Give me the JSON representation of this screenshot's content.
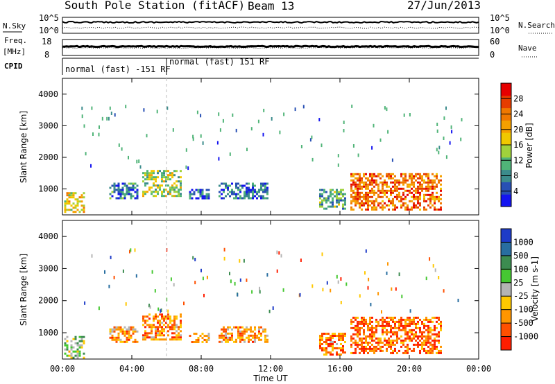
{
  "header": {
    "station": "South Pole Station (fitACF)",
    "beam": "Beam 13",
    "date": "27/Jun/2013"
  },
  "strips": {
    "nsky_label": "N.Sky",
    "nsky_ticks": [
      "10^5",
      "10^0"
    ],
    "nsearch_label": "N.Search",
    "nsearch_ticks": [
      "10^5",
      "10^0"
    ],
    "freq_label_1": "Freq.",
    "freq_label_2": "[MHz]",
    "freq_ticks": [
      "18",
      "8"
    ],
    "nave_label": "Nave",
    "nave_ticks": [
      "60",
      "0"
    ],
    "cpid_label": "CPID",
    "cpid_segments": [
      {
        "label": "normal (fast) -151 RF",
        "start_hour": 0,
        "end_hour": 6
      },
      {
        "label": "normal (fast) 151 RF",
        "start_hour": 6,
        "end_hour": 24
      }
    ]
  },
  "x_axis": {
    "label": "Time UT",
    "ticks": [
      "00:00",
      "04:00",
      "08:00",
      "12:00",
      "16:00",
      "20:00",
      "00:00"
    ],
    "range_hours": [
      0,
      24
    ]
  },
  "chart_data": [
    {
      "type": "heatmap",
      "name": "power",
      "ylabel": "Slant Range [km]",
      "yticks": [
        "1000",
        "2000",
        "3000",
        "4000"
      ],
      "ylim": [
        180,
        4500
      ],
      "colorbar_label": "Power [dB]",
      "colorbar_ticks": [
        "4",
        "8",
        "12",
        "16",
        "20",
        "24",
        "28"
      ],
      "colorbar_colors": [
        "#1414f0",
        "#2850b4",
        "#3c8c8c",
        "#50b478",
        "#a0d23c",
        "#f0c800",
        "#f5a000",
        "#f07800",
        "#e63c00",
        "#e60000"
      ],
      "echo_regions": [
        {
          "t0": 0.1,
          "t1": 1.2,
          "r0": 250,
          "r1": 900,
          "level": 0.55
        },
        {
          "t0": 2.7,
          "t1": 4.3,
          "r0": 700,
          "r1": 1200,
          "level": 0.2
        },
        {
          "t0": 4.6,
          "t1": 6.8,
          "r0": 800,
          "r1": 1600,
          "level": 0.45
        },
        {
          "t0": 7.3,
          "t1": 8.5,
          "r0": 700,
          "r1": 1000,
          "level": 0.15
        },
        {
          "t0": 9.0,
          "t1": 11.8,
          "r0": 700,
          "r1": 1200,
          "level": 0.15
        },
        {
          "t0": 14.8,
          "t1": 16.3,
          "r0": 350,
          "r1": 1000,
          "level": 0.3
        },
        {
          "t0": 16.6,
          "t1": 21.8,
          "r0": 350,
          "r1": 1500,
          "level": 0.8
        }
      ]
    },
    {
      "type": "heatmap",
      "name": "velocity",
      "ylabel": "Slant Range [km]",
      "yticks": [
        "1000",
        "2000",
        "3000",
        "4000"
      ],
      "ylim": [
        180,
        4500
      ],
      "colorbar_label": "Velocity [m s-1]",
      "colorbar_ticks": [
        "1000",
        "500",
        "100",
        "25",
        "-25",
        "-100",
        "-500",
        "-1000"
      ],
      "colorbar_colors": [
        "#1e3cc8",
        "#286ea0",
        "#3c8c50",
        "#46c832",
        "#b4b4b4",
        "#ffc800",
        "#ff9600",
        "#ff5000",
        "#ff1e00"
      ],
      "echo_regions": [
        {
          "t0": 0.1,
          "t1": 1.2,
          "r0": 250,
          "r1": 900,
          "level": 0.45
        },
        {
          "t0": 2.7,
          "t1": 4.3,
          "r0": 700,
          "r1": 1200,
          "level": 0.7
        },
        {
          "t0": 4.6,
          "t1": 6.8,
          "r0": 800,
          "r1": 1600,
          "level": 0.75
        },
        {
          "t0": 7.3,
          "t1": 8.5,
          "r0": 700,
          "r1": 1000,
          "level": 0.75
        },
        {
          "t0": 9.0,
          "t1": 11.8,
          "r0": 700,
          "r1": 1200,
          "level": 0.75
        },
        {
          "t0": 14.8,
          "t1": 16.3,
          "r0": 350,
          "r1": 1000,
          "level": 0.8
        },
        {
          "t0": 16.6,
          "t1": 21.8,
          "r0": 350,
          "r1": 1500,
          "level": 0.85
        }
      ]
    }
  ]
}
